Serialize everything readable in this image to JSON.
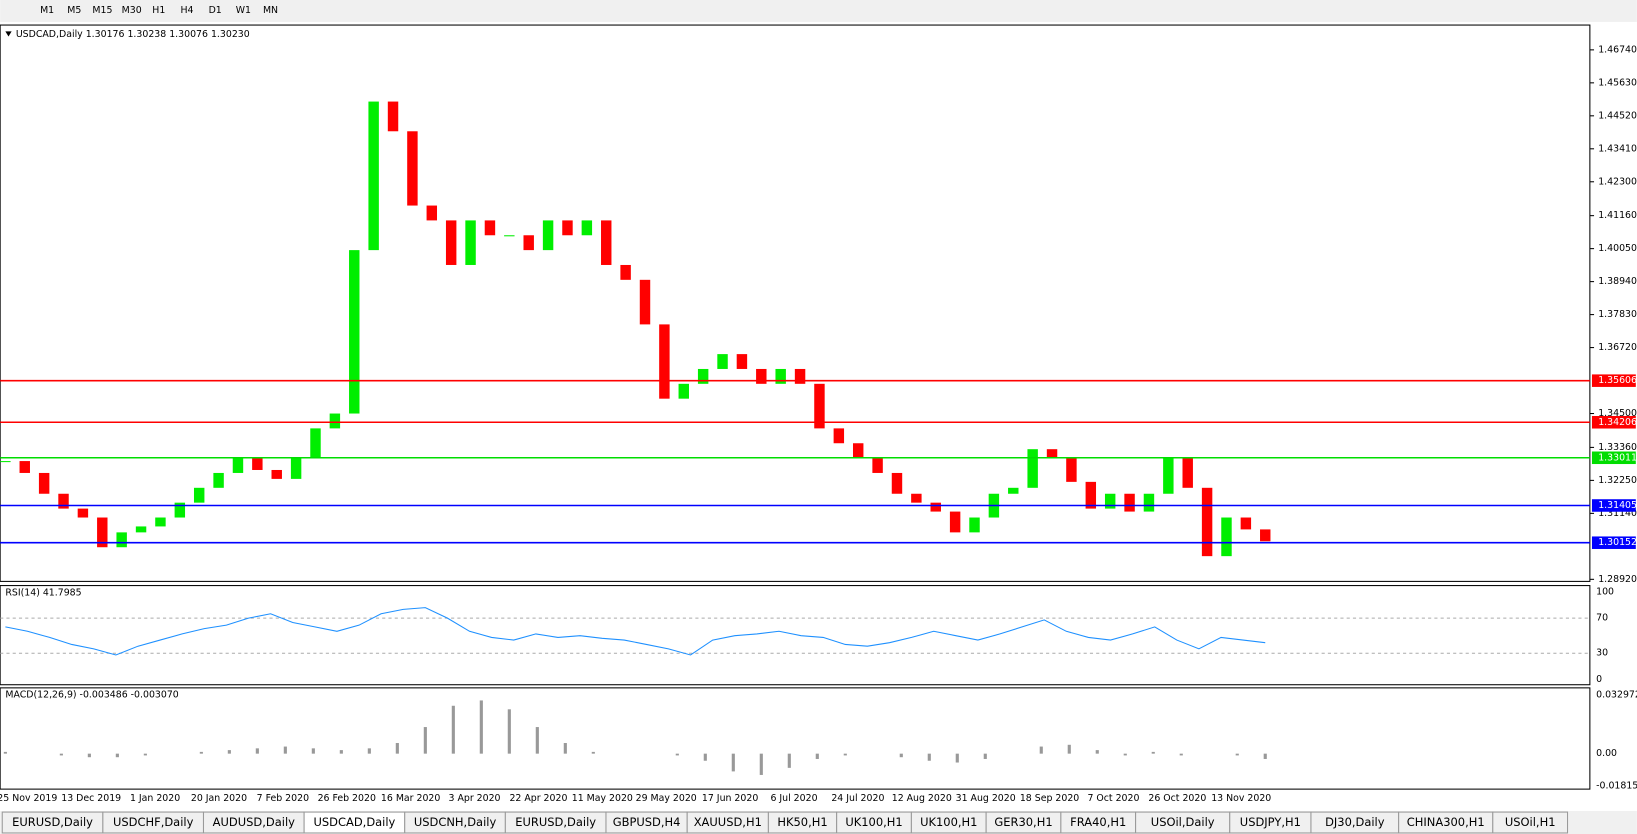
{
  "toolbar": {
    "timeframes": [
      "M1",
      "M5",
      "M15",
      "M30",
      "H1",
      "H4",
      "D1",
      "W1",
      "MN"
    ]
  },
  "chart": {
    "header": "USDCAD,Daily  1.30176 1.30238 1.30076 1.30230",
    "ylim": [
      1.2885,
      1.4754
    ],
    "yticks": [
      {
        "value": 1.4674,
        "label": "1.46740"
      },
      {
        "value": 1.4563,
        "label": "1.45630"
      },
      {
        "value": 1.4452,
        "label": "1.44520"
      },
      {
        "value": 1.4341,
        "label": "1.43410"
      },
      {
        "value": 1.423,
        "label": "1.42300"
      },
      {
        "value": 1.4116,
        "label": "1.41160"
      },
      {
        "value": 1.4005,
        "label": "1.40050"
      },
      {
        "value": 1.3894,
        "label": "1.38940"
      },
      {
        "value": 1.3783,
        "label": "1.37830"
      },
      {
        "value": 1.3672,
        "label": "1.36720"
      },
      {
        "value": 1.345,
        "label": "1.34500"
      },
      {
        "value": 1.3336,
        "label": "1.33360"
      },
      {
        "value": 1.3225,
        "label": "1.32250"
      },
      {
        "value": 1.3114,
        "label": "1.31140"
      },
      {
        "value": 1.2892,
        "label": "1.28920"
      }
    ],
    "levels": [
      {
        "value": 1.35606,
        "color": "#ff0000"
      },
      {
        "value": 1.34206,
        "color": "#ff0000"
      },
      {
        "value": 1.33011,
        "color": "#00dd00"
      },
      {
        "value": 1.31405,
        "color": "#0000ff"
      },
      {
        "value": 1.30152,
        "color": "#0000ff"
      }
    ],
    "closes": [
      1.329,
      1.325,
      1.318,
      1.313,
      1.31,
      1.3,
      1.305,
      1.307,
      1.31,
      1.315,
      1.32,
      1.325,
      1.33,
      1.326,
      1.323,
      1.33,
      1.34,
      1.345,
      1.4,
      1.45,
      1.44,
      1.415,
      1.41,
      1.395,
      1.41,
      1.405,
      1.405,
      1.4,
      1.41,
      1.405,
      1.41,
      1.395,
      1.39,
      1.375,
      1.35,
      1.355,
      1.36,
      1.365,
      1.36,
      1.355,
      1.36,
      1.355,
      1.34,
      1.335,
      1.33,
      1.325,
      1.318,
      1.315,
      1.312,
      1.305,
      1.31,
      1.318,
      1.32,
      1.333,
      1.33,
      1.322,
      1.313,
      1.318,
      1.312,
      1.318,
      1.33,
      1.32,
      1.297,
      1.31,
      1.306,
      1.302
    ],
    "up_color": "#00ee00",
    "down_color": "#ff0000",
    "dates": [
      "25 Nov 2019",
      "13 Dec 2019",
      "1 Jan 2020",
      "20 Jan 2020",
      "7 Feb 2020",
      "26 Feb 2020",
      "16 Mar 2020",
      "3 Apr 2020",
      "22 Apr 2020",
      "11 May 2020",
      "29 May 2020",
      "17 Jun 2020",
      "6 Jul 2020",
      "24 Jul 2020",
      "12 Aug 2020",
      "31 Aug 2020",
      "18 Sep 2020",
      "7 Oct 2020",
      "26 Oct 2020",
      "13 Nov 2020"
    ]
  },
  "rsi": {
    "label": "RSI(14) 41.7985",
    "ylim": [
      0,
      100
    ],
    "yticks": [
      100,
      70,
      30,
      0
    ],
    "color": "#1e90ff",
    "values": [
      60,
      55,
      48,
      40,
      35,
      28,
      38,
      45,
      52,
      58,
      62,
      70,
      75,
      65,
      60,
      55,
      62,
      75,
      80,
      82,
      70,
      55,
      48,
      45,
      52,
      48,
      50,
      47,
      45,
      40,
      35,
      28,
      45,
      50,
      52,
      55,
      50,
      48,
      40,
      38,
      42,
      48,
      55,
      50,
      45,
      52,
      60,
      68,
      55,
      48,
      45,
      52,
      60,
      45,
      35,
      48,
      45,
      42
    ]
  },
  "macd": {
    "label": "MACD(12,26,9) -0.003486 -0.003070",
    "ylim": [
      -0.0194,
      0.0365
    ],
    "yticks": [
      {
        "value": 0.032972,
        "label": "0.032972"
      },
      {
        "value": 0,
        "label": "0.00"
      },
      {
        "value": -0.018154,
        "label": "-0.018154"
      }
    ],
    "values": [
      0.001,
      0,
      -0.001,
      -0.002,
      -0.002,
      -0.001,
      0,
      0.001,
      0.002,
      0.003,
      0.004,
      0.003,
      0.002,
      0.003,
      0.006,
      0.015,
      0.027,
      0.03,
      0.025,
      0.015,
      0.006,
      0.001,
      0,
      0,
      -0.001,
      -0.004,
      -0.01,
      -0.012,
      -0.008,
      -0.003,
      -0.001,
      0,
      -0.002,
      -0.004,
      -0.005,
      -0.003,
      0,
      0.004,
      0.005,
      0.002,
      -0.001,
      0.001,
      -0.001,
      0,
      -0.001,
      -0.003
    ]
  },
  "tabs": {
    "items": [
      "EURUSD,Daily",
      "USDCHF,Daily",
      "AUDUSD,Daily",
      "USDCAD,Daily",
      "USDCNH,Daily",
      "EURUSD,Daily",
      "GBPUSD,H4",
      "XAUUSD,H1",
      "HK50,H1",
      "UK100,H1",
      "UK100,H1",
      "GER30,H1",
      "FRA40,H1",
      "USOil,Daily",
      "USDJPY,H1",
      "DJ30,Daily",
      "CHINA300,H1",
      "USOil,H1"
    ],
    "active": 3
  }
}
